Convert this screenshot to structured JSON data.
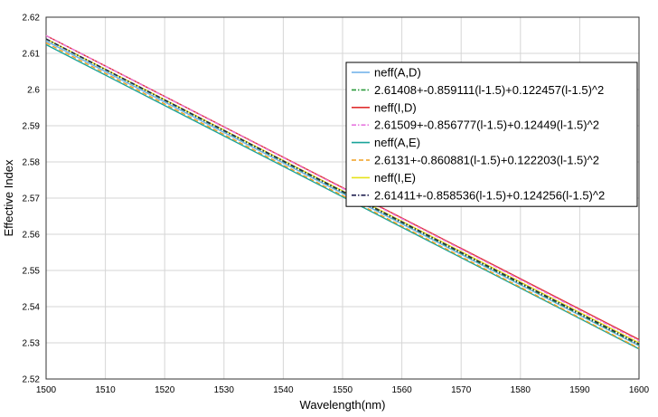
{
  "chart_data": {
    "type": "line",
    "xlabel": "Wavelength(nm)",
    "ylabel": "Effective Index",
    "xlim": [
      1500,
      1600
    ],
    "ylim": [
      2.52,
      2.62
    ],
    "x_ticks": [
      1500,
      1510,
      1520,
      1530,
      1540,
      1550,
      1560,
      1570,
      1580,
      1590,
      1600
    ],
    "x_tick_labels": [
      "1500",
      "1510",
      "1520",
      "1530",
      "1540",
      "1550",
      "1560",
      "1570",
      "1580",
      "1590",
      "1600"
    ],
    "y_ticks": [
      2.52,
      2.53,
      2.54,
      2.55,
      2.56,
      2.57,
      2.58,
      2.59,
      2.6,
      2.61,
      2.62
    ],
    "y_tick_labels": [
      "2.52",
      "2.53",
      "2.54",
      "2.55",
      "2.56",
      "2.57",
      "2.58",
      "2.59",
      "2.6",
      "2.61",
      "2.62"
    ],
    "grid": true,
    "legend_position": "top-right",
    "x": [
      1500,
      1600
    ],
    "series": [
      {
        "name": "neff(A,D)",
        "color": "#6aaee8",
        "dash": "solid",
        "values": [
          2.6134,
          2.5292
        ]
      },
      {
        "name": "2.61408+-0.859111(l-1.5)+0.122457(l-1.5)^2",
        "color": "#2a9a3a",
        "dash": "dashdot",
        "values": [
          2.6139,
          2.5294
        ]
      },
      {
        "name": "neff(I,D)",
        "color": "#e03030",
        "dash": "solid",
        "values": [
          2.6149,
          2.5309
        ]
      },
      {
        "name": "2.61509+-0.856777(l-1.5)+0.12449(l-1.5)^2",
        "color": "#e878e0",
        "dash": "dashdot",
        "values": [
          2.6149,
          2.5306
        ]
      },
      {
        "name": "neff(A,E)",
        "color": "#19a39a",
        "dash": "solid",
        "values": [
          2.6124,
          2.5283
        ]
      },
      {
        "name": "2.6131+-0.860881(l-1.5)+0.122203(l-1.5)^2",
        "color": "#f0a020",
        "dash": "dashed",
        "values": [
          2.6129,
          2.5285
        ]
      },
      {
        "name": "neff(I,E)",
        "color": "#e6e21a",
        "dash": "solid",
        "values": [
          2.614,
          2.53
        ]
      },
      {
        "name": "2.61411+-0.858536(l-1.5)+0.124256(l-1.5)^2",
        "color": "#202050",
        "dash": "dashdot",
        "values": [
          2.614,
          2.5297
        ]
      }
    ]
  }
}
